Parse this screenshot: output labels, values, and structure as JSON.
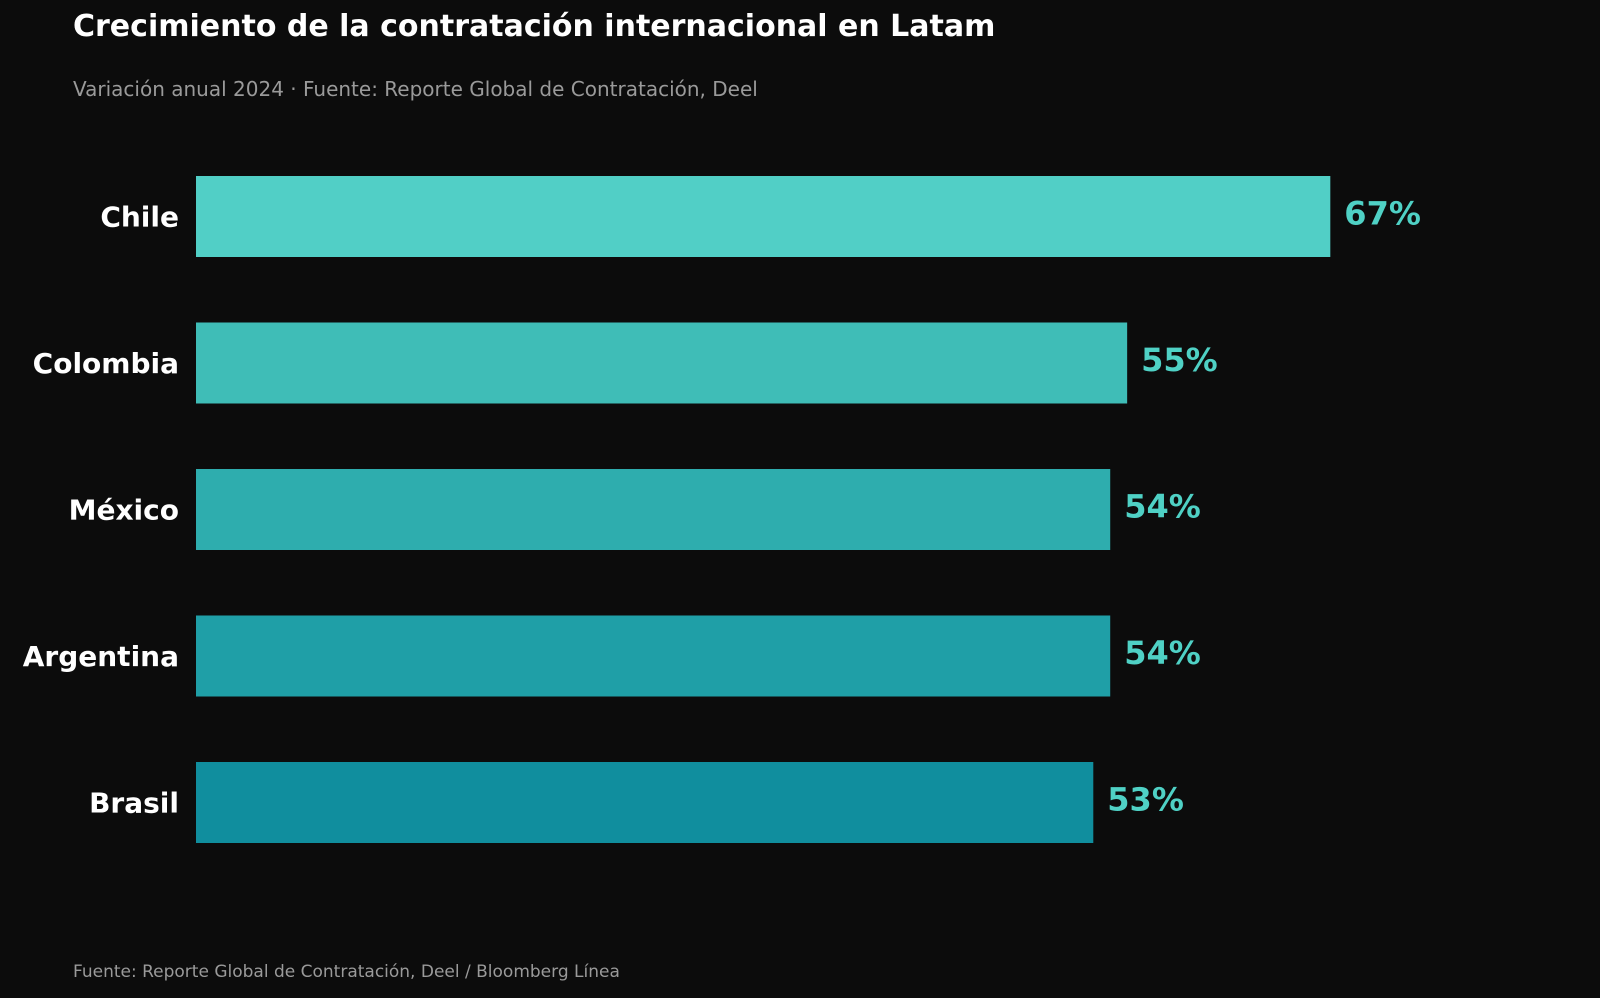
{
  "chart_data": {
    "type": "bar",
    "orientation": "horizontal",
    "title": "Crecimiento de la contratación internacional en Latam",
    "subtitle": "Variación anual 2024 · Fuente: Reporte Global de Contratación, Deel",
    "categories": [
      "Chile",
      "Colombia",
      "México",
      "Argentina",
      "Brasil"
    ],
    "values": [
      67,
      55,
      54,
      54,
      53
    ],
    "value_labels": [
      "67%",
      "55%",
      "54%",
      "54%",
      "53%"
    ],
    "unit": "%",
    "xlabel": "",
    "ylabel": "",
    "xlim": [
      0,
      75
    ],
    "grid": false,
    "legend": "none"
  },
  "footer": {
    "source": "Fuente: Reporte Global de Contratación, Deel / Bloomberg Línea"
  },
  "colors": {
    "background": "#0c0c0c",
    "bars": [
      "#51cfc6",
      "#3fbdb7",
      "#2eadae",
      "#1f9fa7",
      "#108e9e"
    ],
    "value_label": "#4fd1c5",
    "category_label": "#ffffff",
    "title": "#ffffff",
    "muted": "#9a9a9a"
  }
}
